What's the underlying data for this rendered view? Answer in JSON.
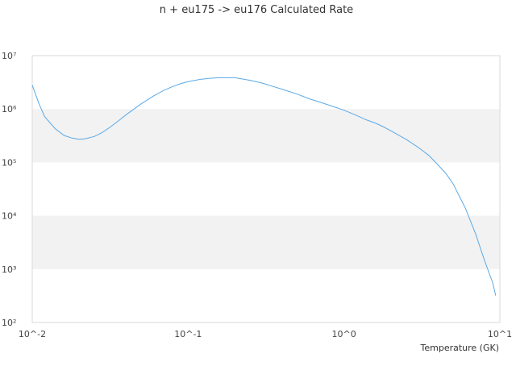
{
  "chart_data": {
    "type": "line",
    "title": "n + eu175 -> eu176 Calculated Rate",
    "xlabel": "Temperature (GK)",
    "ylabel": "",
    "x_scale": "log",
    "y_scale": "log",
    "xlim": [
      0.01,
      10
    ],
    "ylim": [
      100,
      10000000
    ],
    "x_tick_labels": [
      "10^-2",
      "10^-1",
      "10^0",
      "10^1"
    ],
    "y_tick_labels": [
      "10^7",
      "10^6",
      "10^5",
      "10^4",
      "10^3",
      "10^2"
    ],
    "grid": "alternating horizontal bands",
    "colors": {
      "line": "#5aa9e6",
      "band": "#f2f2f2",
      "frame": "#d9d9d9"
    },
    "series": [
      {
        "x": [
          0.01,
          0.011,
          0.012,
          0.014,
          0.016,
          0.018,
          0.02,
          0.022,
          0.025,
          0.028,
          0.032,
          0.036,
          0.04,
          0.045,
          0.05,
          0.06,
          0.07,
          0.08,
          0.09,
          0.1,
          0.12,
          0.14,
          0.16,
          0.18,
          0.2,
          0.25,
          0.3,
          0.35,
          0.4,
          0.5,
          0.6,
          0.7,
          0.8,
          1.0,
          1.2,
          1.4,
          1.6,
          1.8,
          2.0,
          2.5,
          3.0,
          3.5,
          4.0,
          4.5,
          5.0,
          6.0,
          7.0,
          8.0,
          9.0,
          9.4
        ],
        "y": [
          2800000,
          1300000,
          720000,
          430000,
          320000,
          285000,
          270000,
          278000,
          305000,
          360000,
          470000,
          610000,
          780000,
          1000000,
          1250000,
          1750000,
          2250000,
          2650000,
          3000000,
          3250000,
          3600000,
          3780000,
          3850000,
          3850000,
          3850000,
          3450000,
          3050000,
          2650000,
          2350000,
          1900000,
          1550000,
          1350000,
          1180000,
          950000,
          760000,
          620000,
          540000,
          460000,
          390000,
          270000,
          190000,
          135000,
          90000,
          62000,
          40000,
          14000,
          4500,
          1400,
          550,
          320
        ]
      }
    ]
  }
}
